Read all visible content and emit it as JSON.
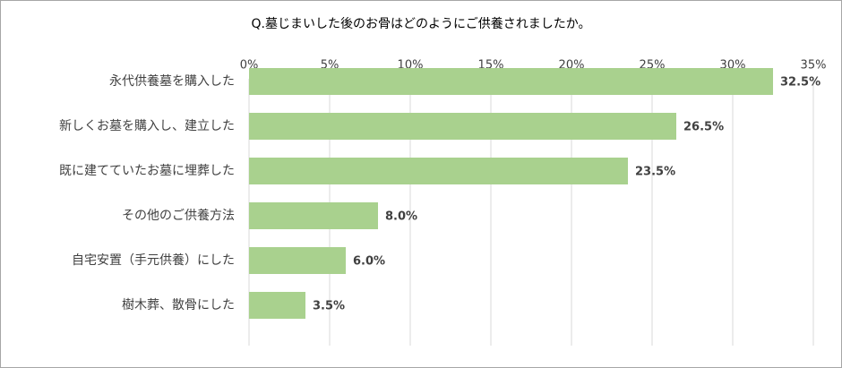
{
  "chart_data": {
    "type": "barh",
    "title": "Q.墓じまいした後のお骨はどのようにご供養されましたか。",
    "categories": [
      "永代供養墓を購入した",
      "新しくお墓を購入し、建立した",
      "既に建てていたお墓に埋葬した",
      "その他のご供養方法",
      "自宅安置（手元供養）にした",
      "樹木葬、散骨にした"
    ],
    "values": [
      32.5,
      26.5,
      23.5,
      8.0,
      6.0,
      3.5
    ],
    "value_labels": [
      "32.5%",
      "26.5%",
      "23.5%",
      "8.0%",
      "6.0%",
      "3.5%"
    ],
    "color": "#a9d18e",
    "xlim": [
      0,
      35
    ],
    "xticks": [
      {
        "value": 0,
        "label": "0%"
      },
      {
        "value": 5,
        "label": "5%"
      },
      {
        "value": 10,
        "label": "10%"
      },
      {
        "value": 15,
        "label": "15%"
      },
      {
        "value": 20,
        "label": "20%"
      },
      {
        "value": 25,
        "label": "25%"
      },
      {
        "value": 30,
        "label": "30%"
      },
      {
        "value": 35,
        "label": "35%"
      }
    ],
    "grid": true
  }
}
